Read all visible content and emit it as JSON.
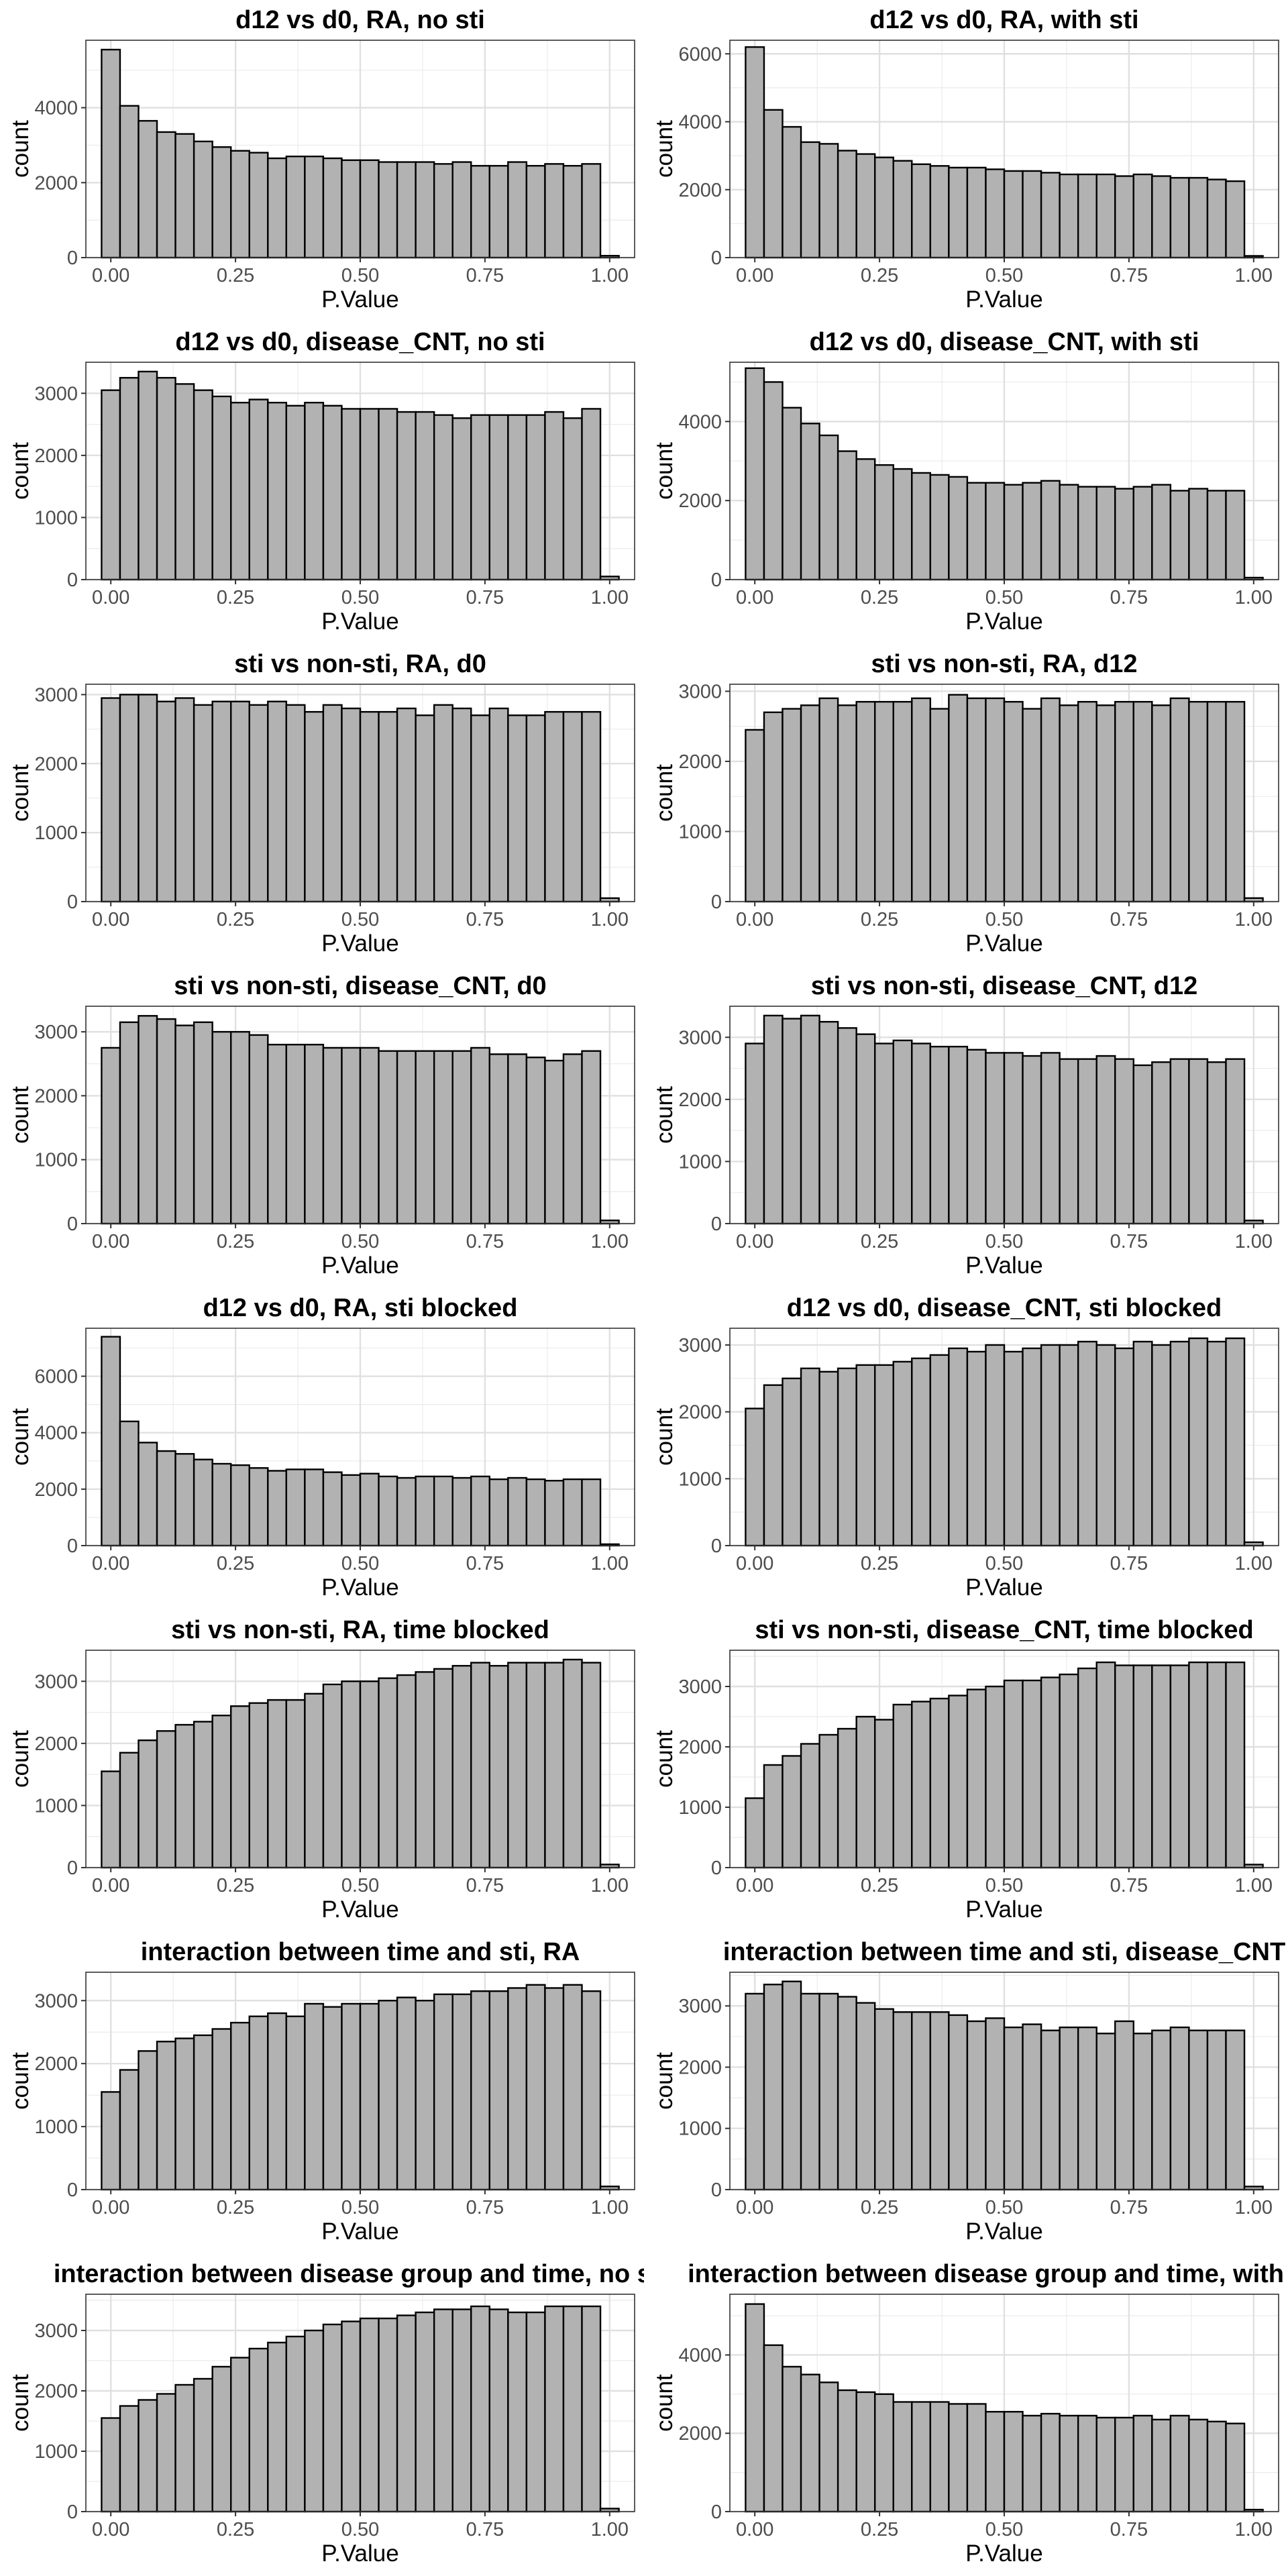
{
  "chart_data": [
    {
      "type": "bar",
      "title": "d12 vs d0, RA, no sti",
      "xlabel": "P.Value",
      "ylabel": "count",
      "xlim": [
        -0.05,
        1.05
      ],
      "ylim": [
        0,
        5800
      ],
      "x_ticks": [
        "0.00",
        "0.25",
        "0.50",
        "0.75",
        "1.00"
      ],
      "y_ticks": [
        0,
        2000,
        4000
      ],
      "grid": true,
      "values": [
        5550,
        4050,
        3650,
        3350,
        3300,
        3100,
        2950,
        2850,
        2800,
        2650,
        2700,
        2700,
        2650,
        2600,
        2600,
        2550,
        2550,
        2550,
        2500,
        2550,
        2450,
        2450,
        2550,
        2450,
        2500,
        2450,
        2500,
        50
      ]
    },
    {
      "type": "bar",
      "title": "d12 vs d0, RA, with sti",
      "xlabel": "P.Value",
      "ylabel": "count",
      "xlim": [
        -0.05,
        1.05
      ],
      "ylim": [
        0,
        6400
      ],
      "x_ticks": [
        "0.00",
        "0.25",
        "0.50",
        "0.75",
        "1.00"
      ],
      "y_ticks": [
        0,
        2000,
        4000,
        6000
      ],
      "grid": true,
      "values": [
        6200,
        4350,
        3850,
        3400,
        3350,
        3150,
        3050,
        2950,
        2850,
        2750,
        2700,
        2650,
        2650,
        2600,
        2550,
        2550,
        2500,
        2450,
        2450,
        2450,
        2400,
        2450,
        2400,
        2350,
        2350,
        2300,
        2250,
        50
      ]
    },
    {
      "type": "bar",
      "title": "d12 vs d0, disease_CNT, no sti",
      "xlabel": "P.Value",
      "ylabel": "count",
      "xlim": [
        -0.05,
        1.05
      ],
      "ylim": [
        0,
        3500
      ],
      "x_ticks": [
        "0.00",
        "0.25",
        "0.50",
        "0.75",
        "1.00"
      ],
      "y_ticks": [
        0,
        1000,
        2000,
        3000
      ],
      "grid": true,
      "values": [
        3050,
        3250,
        3350,
        3250,
        3150,
        3050,
        2950,
        2850,
        2900,
        2850,
        2800,
        2850,
        2800,
        2750,
        2750,
        2750,
        2700,
        2700,
        2650,
        2600,
        2650,
        2650,
        2650,
        2650,
        2700,
        2600,
        2750,
        50
      ]
    },
    {
      "type": "bar",
      "title": "d12 vs d0, disease_CNT, with sti",
      "xlabel": "P.Value",
      "ylabel": "count",
      "xlim": [
        -0.05,
        1.05
      ],
      "ylim": [
        0,
        5500
      ],
      "x_ticks": [
        "0.00",
        "0.25",
        "0.50",
        "0.75",
        "1.00"
      ],
      "y_ticks": [
        0,
        2000,
        4000
      ],
      "grid": true,
      "values": [
        5350,
        5000,
        4350,
        3950,
        3650,
        3250,
        3050,
        2900,
        2800,
        2700,
        2650,
        2600,
        2450,
        2450,
        2400,
        2450,
        2500,
        2400,
        2350,
        2350,
        2300,
        2350,
        2400,
        2250,
        2300,
        2250,
        2250,
        50
      ]
    },
    {
      "type": "bar",
      "title": "sti vs non-sti, RA, d0",
      "xlabel": "P.Value",
      "ylabel": "count",
      "xlim": [
        -0.05,
        1.05
      ],
      "ylim": [
        0,
        3150
      ],
      "x_ticks": [
        "0.00",
        "0.25",
        "0.50",
        "0.75",
        "1.00"
      ],
      "y_ticks": [
        0,
        1000,
        2000,
        3000
      ],
      "grid": true,
      "values": [
        2950,
        3000,
        3000,
        2900,
        2950,
        2850,
        2900,
        2900,
        2850,
        2900,
        2850,
        2750,
        2850,
        2800,
        2750,
        2750,
        2800,
        2700,
        2850,
        2800,
        2700,
        2800,
        2700,
        2700,
        2750,
        2750,
        2750,
        50
      ]
    },
    {
      "type": "bar",
      "title": "sti vs non-sti, RA, d12",
      "xlabel": "P.Value",
      "ylabel": "count",
      "xlim": [
        -0.05,
        1.05
      ],
      "ylim": [
        0,
        3100
      ],
      "x_ticks": [
        "0.00",
        "0.25",
        "0.50",
        "0.75",
        "1.00"
      ],
      "y_ticks": [
        0,
        1000,
        2000,
        3000
      ],
      "grid": true,
      "values": [
        2450,
        2700,
        2750,
        2800,
        2900,
        2800,
        2850,
        2850,
        2850,
        2900,
        2750,
        2950,
        2900,
        2900,
        2850,
        2750,
        2900,
        2800,
        2850,
        2800,
        2850,
        2850,
        2800,
        2900,
        2850,
        2850,
        2850,
        50
      ]
    },
    {
      "type": "bar",
      "title": "sti vs non-sti, disease_CNT, d0",
      "xlabel": "P.Value",
      "ylabel": "count",
      "xlim": [
        -0.05,
        1.05
      ],
      "ylim": [
        0,
        3400
      ],
      "x_ticks": [
        "0.00",
        "0.25",
        "0.50",
        "0.75",
        "1.00"
      ],
      "y_ticks": [
        0,
        1000,
        2000,
        3000
      ],
      "grid": true,
      "values": [
        2750,
        3150,
        3250,
        3200,
        3100,
        3150,
        3000,
        3000,
        2950,
        2800,
        2800,
        2800,
        2750,
        2750,
        2750,
        2700,
        2700,
        2700,
        2700,
        2700,
        2750,
        2650,
        2650,
        2600,
        2550,
        2650,
        2700,
        50
      ]
    },
    {
      "type": "bar",
      "title": "sti vs non-sti, disease_CNT, d12",
      "xlabel": "P.Value",
      "ylabel": "count",
      "xlim": [
        -0.05,
        1.05
      ],
      "ylim": [
        0,
        3500
      ],
      "x_ticks": [
        "0.00",
        "0.25",
        "0.50",
        "0.75",
        "1.00"
      ],
      "y_ticks": [
        0,
        1000,
        2000,
        3000
      ],
      "grid": true,
      "values": [
        2900,
        3350,
        3300,
        3350,
        3250,
        3150,
        3050,
        2900,
        2950,
        2900,
        2850,
        2850,
        2800,
        2750,
        2750,
        2700,
        2750,
        2650,
        2650,
        2700,
        2650,
        2550,
        2600,
        2650,
        2650,
        2600,
        2650,
        50
      ]
    },
    {
      "type": "bar",
      "title": "d12 vs d0, RA, sti blocked",
      "xlabel": "P.Value",
      "ylabel": "count",
      "xlim": [
        -0.05,
        1.05
      ],
      "ylim": [
        0,
        7700
      ],
      "x_ticks": [
        "0.00",
        "0.25",
        "0.50",
        "0.75",
        "1.00"
      ],
      "y_ticks": [
        0,
        2000,
        4000,
        6000
      ],
      "grid": true,
      "values": [
        7400,
        4400,
        3650,
        3350,
        3250,
        3050,
        2900,
        2850,
        2750,
        2650,
        2700,
        2700,
        2600,
        2500,
        2550,
        2450,
        2400,
        2450,
        2450,
        2400,
        2450,
        2350,
        2400,
        2350,
        2300,
        2350,
        2350,
        50
      ]
    },
    {
      "type": "bar",
      "title": "d12 vs d0, disease_CNT, sti blocked",
      "xlabel": "P.Value",
      "ylabel": "count",
      "xlim": [
        -0.05,
        1.05
      ],
      "ylim": [
        0,
        3250
      ],
      "x_ticks": [
        "0.00",
        "0.25",
        "0.50",
        "0.75",
        "1.00"
      ],
      "y_ticks": [
        0,
        1000,
        2000,
        3000
      ],
      "grid": true,
      "values": [
        2050,
        2400,
        2500,
        2650,
        2600,
        2650,
        2700,
        2700,
        2750,
        2800,
        2850,
        2950,
        2900,
        3000,
        2900,
        2950,
        3000,
        3000,
        3050,
        3000,
        2950,
        3050,
        3000,
        3050,
        3100,
        3050,
        3100,
        50
      ]
    },
    {
      "type": "bar",
      "title": "sti vs non-sti, RA, time blocked",
      "xlabel": "P.Value",
      "ylabel": "count",
      "xlim": [
        -0.05,
        1.05
      ],
      "ylim": [
        0,
        3500
      ],
      "x_ticks": [
        "0.00",
        "0.25",
        "0.50",
        "0.75",
        "1.00"
      ],
      "y_ticks": [
        0,
        1000,
        2000,
        3000
      ],
      "grid": true,
      "values": [
        1550,
        1850,
        2050,
        2200,
        2300,
        2350,
        2450,
        2600,
        2650,
        2700,
        2700,
        2800,
        2950,
        3000,
        3000,
        3050,
        3100,
        3150,
        3200,
        3250,
        3300,
        3250,
        3300,
        3300,
        3300,
        3350,
        3300,
        50
      ]
    },
    {
      "type": "bar",
      "title": "sti vs non-sti, disease_CNT, time blocked",
      "xlabel": "P.Value",
      "ylabel": "count",
      "xlim": [
        -0.05,
        1.05
      ],
      "ylim": [
        0,
        3600
      ],
      "x_ticks": [
        "0.00",
        "0.25",
        "0.50",
        "0.75",
        "1.00"
      ],
      "y_ticks": [
        0,
        1000,
        2000,
        3000
      ],
      "grid": true,
      "values": [
        1150,
        1700,
        1850,
        2050,
        2200,
        2300,
        2500,
        2450,
        2700,
        2750,
        2800,
        2850,
        2950,
        3000,
        3100,
        3100,
        3150,
        3200,
        3300,
        3400,
        3350,
        3350,
        3350,
        3350,
        3400,
        3400,
        3400,
        50
      ]
    },
    {
      "type": "bar",
      "title": "interaction between time and sti, RA",
      "xlabel": "P.Value",
      "ylabel": "count",
      "xlim": [
        -0.05,
        1.05
      ],
      "ylim": [
        0,
        3450
      ],
      "x_ticks": [
        "0.00",
        "0.25",
        "0.50",
        "0.75",
        "1.00"
      ],
      "y_ticks": [
        0,
        1000,
        2000,
        3000
      ],
      "grid": true,
      "values": [
        1550,
        1900,
        2200,
        2350,
        2400,
        2450,
        2550,
        2650,
        2750,
        2800,
        2750,
        2950,
        2900,
        2950,
        2950,
        3000,
        3050,
        3000,
        3100,
        3100,
        3150,
        3150,
        3200,
        3250,
        3200,
        3250,
        3150,
        50
      ]
    },
    {
      "type": "bar",
      "title": "interaction between time and sti, disease_CNT",
      "xlabel": "P.Value",
      "ylabel": "count",
      "xlim": [
        -0.05,
        1.05
      ],
      "ylim": [
        0,
        3550
      ],
      "x_ticks": [
        "0.00",
        "0.25",
        "0.50",
        "0.75",
        "1.00"
      ],
      "y_ticks": [
        0,
        1000,
        2000,
        3000
      ],
      "grid": true,
      "values": [
        3200,
        3350,
        3400,
        3200,
        3200,
        3150,
        3050,
        2950,
        2900,
        2900,
        2900,
        2850,
        2750,
        2800,
        2650,
        2700,
        2600,
        2650,
        2650,
        2550,
        2750,
        2550,
        2600,
        2650,
        2600,
        2600,
        2600,
        50
      ]
    },
    {
      "type": "bar",
      "title": "interaction between disease group and time, no sti",
      "xlabel": "P.Value",
      "ylabel": "count",
      "xlim": [
        -0.05,
        1.05
      ],
      "ylim": [
        0,
        3600
      ],
      "x_ticks": [
        "0.00",
        "0.25",
        "0.50",
        "0.75",
        "1.00"
      ],
      "y_ticks": [
        0,
        1000,
        2000,
        3000
      ],
      "grid": true,
      "values": [
        1550,
        1750,
        1850,
        1950,
        2100,
        2200,
        2400,
        2550,
        2700,
        2800,
        2900,
        3000,
        3100,
        3150,
        3200,
        3200,
        3250,
        3300,
        3350,
        3350,
        3400,
        3350,
        3300,
        3300,
        3400,
        3400,
        3400,
        50
      ]
    },
    {
      "type": "bar",
      "title": "interaction between disease group and time, with sti",
      "xlabel": "P.Value",
      "ylabel": "count",
      "xlim": [
        -0.05,
        1.05
      ],
      "ylim": [
        0,
        5550
      ],
      "x_ticks": [
        "0.00",
        "0.25",
        "0.50",
        "0.75",
        "1.00"
      ],
      "y_ticks": [
        0,
        2000,
        4000
      ],
      "grid": true,
      "values": [
        5300,
        4250,
        3700,
        3500,
        3300,
        3100,
        3050,
        3000,
        2800,
        2800,
        2800,
        2750,
        2750,
        2550,
        2550,
        2450,
        2500,
        2450,
        2450,
        2400,
        2400,
        2450,
        2350,
        2450,
        2350,
        2300,
        2250,
        50
      ]
    }
  ]
}
